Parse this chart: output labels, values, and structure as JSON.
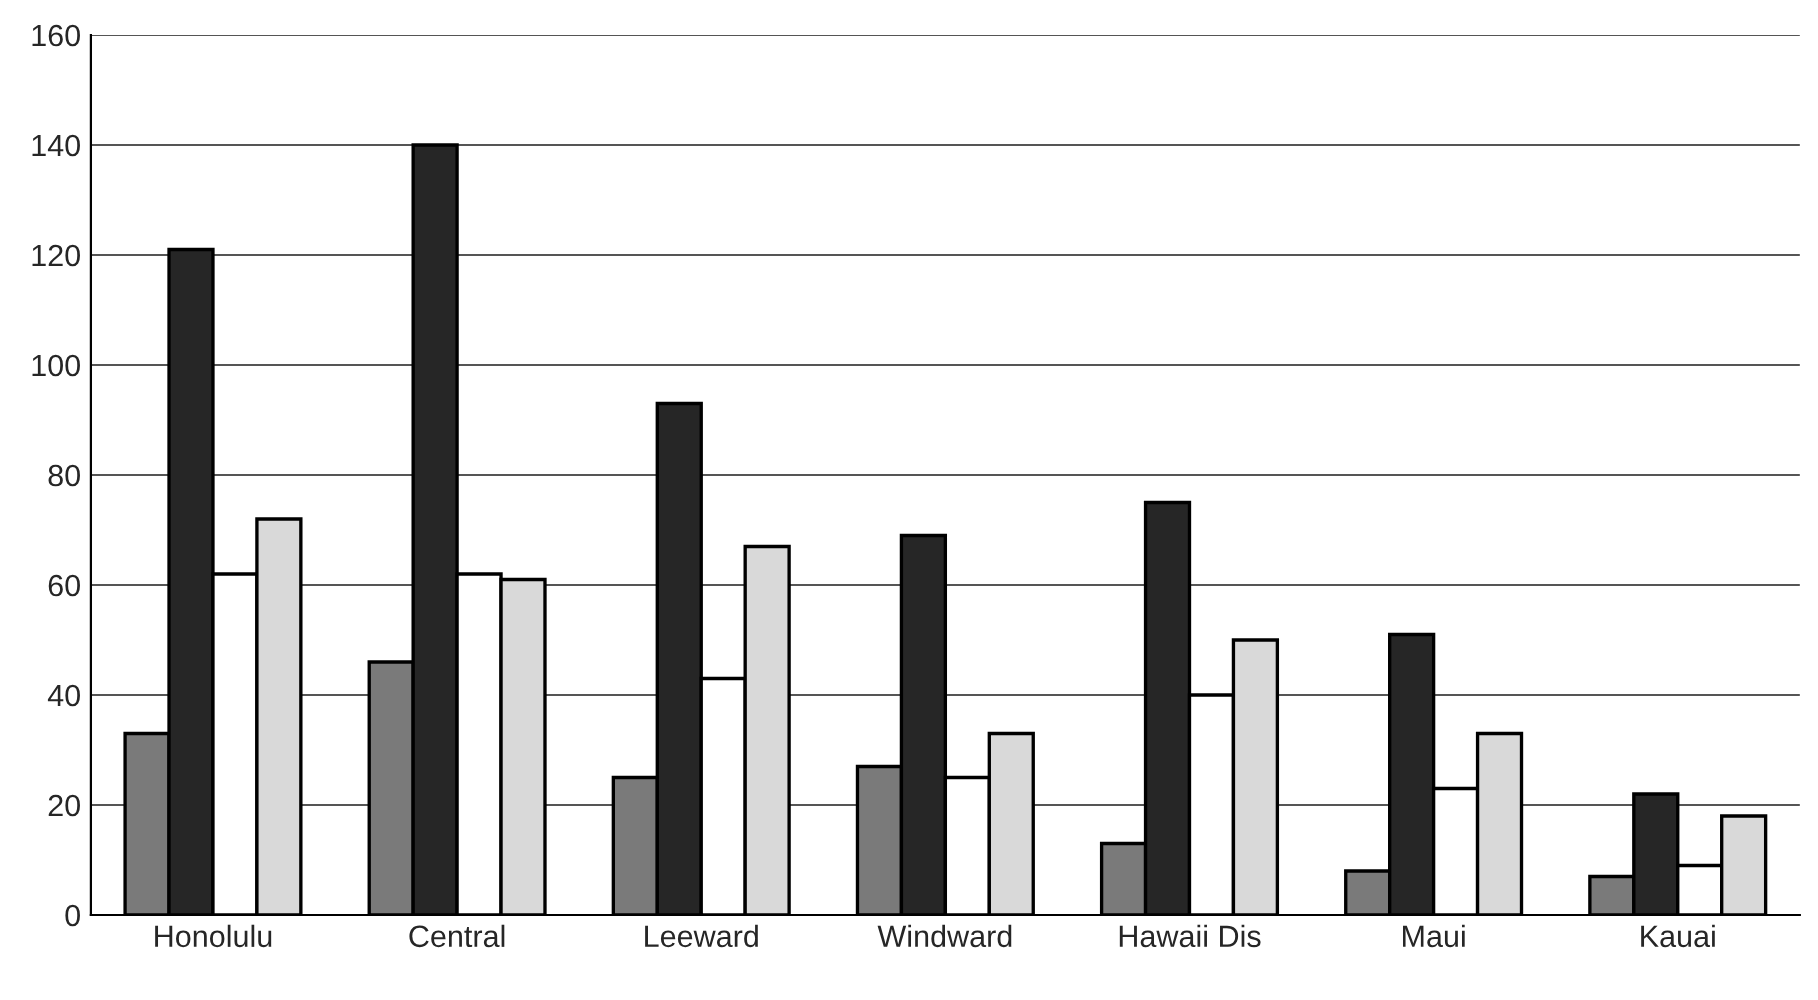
{
  "chart_data": {
    "type": "bar",
    "categories": [
      "Honolulu",
      "Central",
      "Leeward",
      "Windward",
      "Hawaii Dis",
      "Maui",
      "Kauai"
    ],
    "series": [
      {
        "color": "#7a7a7a",
        "values": [
          33,
          46,
          25,
          27,
          13,
          8,
          7
        ]
      },
      {
        "color": "#262626",
        "values": [
          121,
          140,
          93,
          69,
          75,
          51,
          22
        ]
      },
      {
        "color": "#ffffff",
        "values": [
          62,
          62,
          43,
          25,
          40,
          23,
          9
        ]
      },
      {
        "color": "#d9d9d9",
        "values": [
          72,
          61,
          67,
          33,
          50,
          33,
          18
        ]
      }
    ],
    "ylim": [
      0,
      160
    ],
    "yticks": [
      0,
      20,
      40,
      60,
      80,
      100,
      120,
      140,
      160
    ],
    "grid": "y"
  }
}
